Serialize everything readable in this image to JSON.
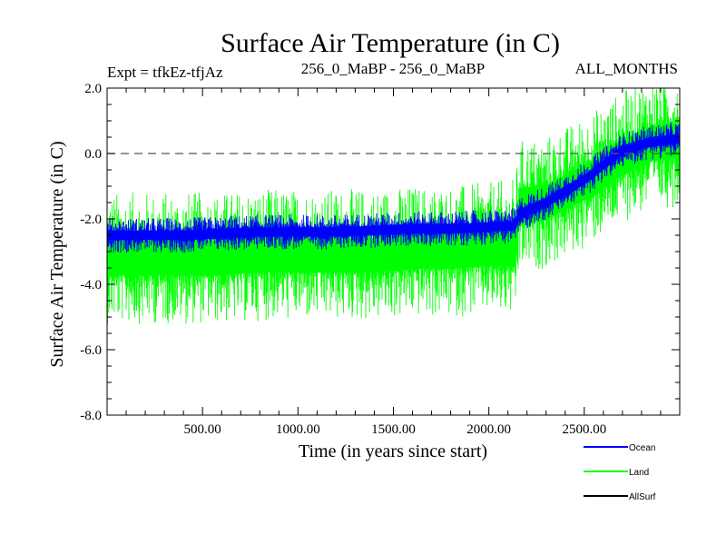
{
  "chart_data": {
    "type": "line",
    "title": "Surface Air Temperature (in C)",
    "subtitle_left": "Expt = tfkEz-tfjAz",
    "subtitle_center": "256_0_MaBP - 256_0_MaBP",
    "subtitle_right": "ALL_MONTHS",
    "xlabel": "Time (in years since start)",
    "ylabel": "Surface Air Temperature (in C)",
    "xlim": [
      0,
      3000
    ],
    "ylim": [
      -8.0,
      2.0
    ],
    "x_ticks": [
      500,
      1000,
      1500,
      2000,
      2500
    ],
    "x_tick_labels": [
      "500.00",
      "1000.00",
      "1500.00",
      "2000.00",
      "2500.00"
    ],
    "y_ticks": [
      -8,
      -6,
      -4,
      -2,
      0,
      2
    ],
    "y_tick_labels": [
      "-8.0",
      "-6.0",
      "-4.0",
      "-2.0",
      "0.0",
      "2.0"
    ],
    "reference_line": {
      "y": 0.0,
      "style": "dashed"
    },
    "legend": {
      "placement": "bottom-right"
    },
    "series": [
      {
        "name": "Land",
        "color": "#00ff00",
        "band": true,
        "x": [
          0,
          200,
          400,
          600,
          800,
          1000,
          1200,
          1400,
          1600,
          1800,
          2000,
          2140,
          2160,
          2300,
          2500,
          2700,
          2850,
          3000
        ],
        "center": [
          -3.2,
          -3.2,
          -3.2,
          -3.2,
          -3.1,
          -3.1,
          -3.1,
          -3.1,
          -3.0,
          -3.0,
          -2.9,
          -2.9,
          -1.6,
          -1.5,
          -0.9,
          -0.1,
          0.3,
          0.4
        ],
        "spread": [
          1.5,
          1.5,
          1.5,
          1.5,
          1.5,
          1.5,
          1.5,
          1.5,
          1.5,
          1.5,
          1.5,
          1.6,
          1.5,
          1.5,
          1.5,
          1.5,
          1.5,
          1.5
        ]
      },
      {
        "name": "Ocean",
        "color": "#0000ff",
        "band": true,
        "x": [
          0,
          200,
          400,
          600,
          800,
          1000,
          1200,
          1400,
          1600,
          1800,
          2000,
          2140,
          2160,
          2300,
          2500,
          2700,
          2850,
          3000
        ],
        "center": [
          -2.5,
          -2.5,
          -2.5,
          -2.45,
          -2.4,
          -2.4,
          -2.4,
          -2.35,
          -2.3,
          -2.3,
          -2.25,
          -2.2,
          -1.85,
          -1.5,
          -0.8,
          0.1,
          0.35,
          0.45
        ],
        "spread": [
          0.4,
          0.4,
          0.4,
          0.4,
          0.4,
          0.4,
          0.4,
          0.4,
          0.4,
          0.4,
          0.4,
          0.4,
          0.4,
          0.4,
          0.4,
          0.4,
          0.4,
          0.4
        ]
      },
      {
        "name": "AllSurf",
        "color": "#000000",
        "band": false
      }
    ]
  }
}
